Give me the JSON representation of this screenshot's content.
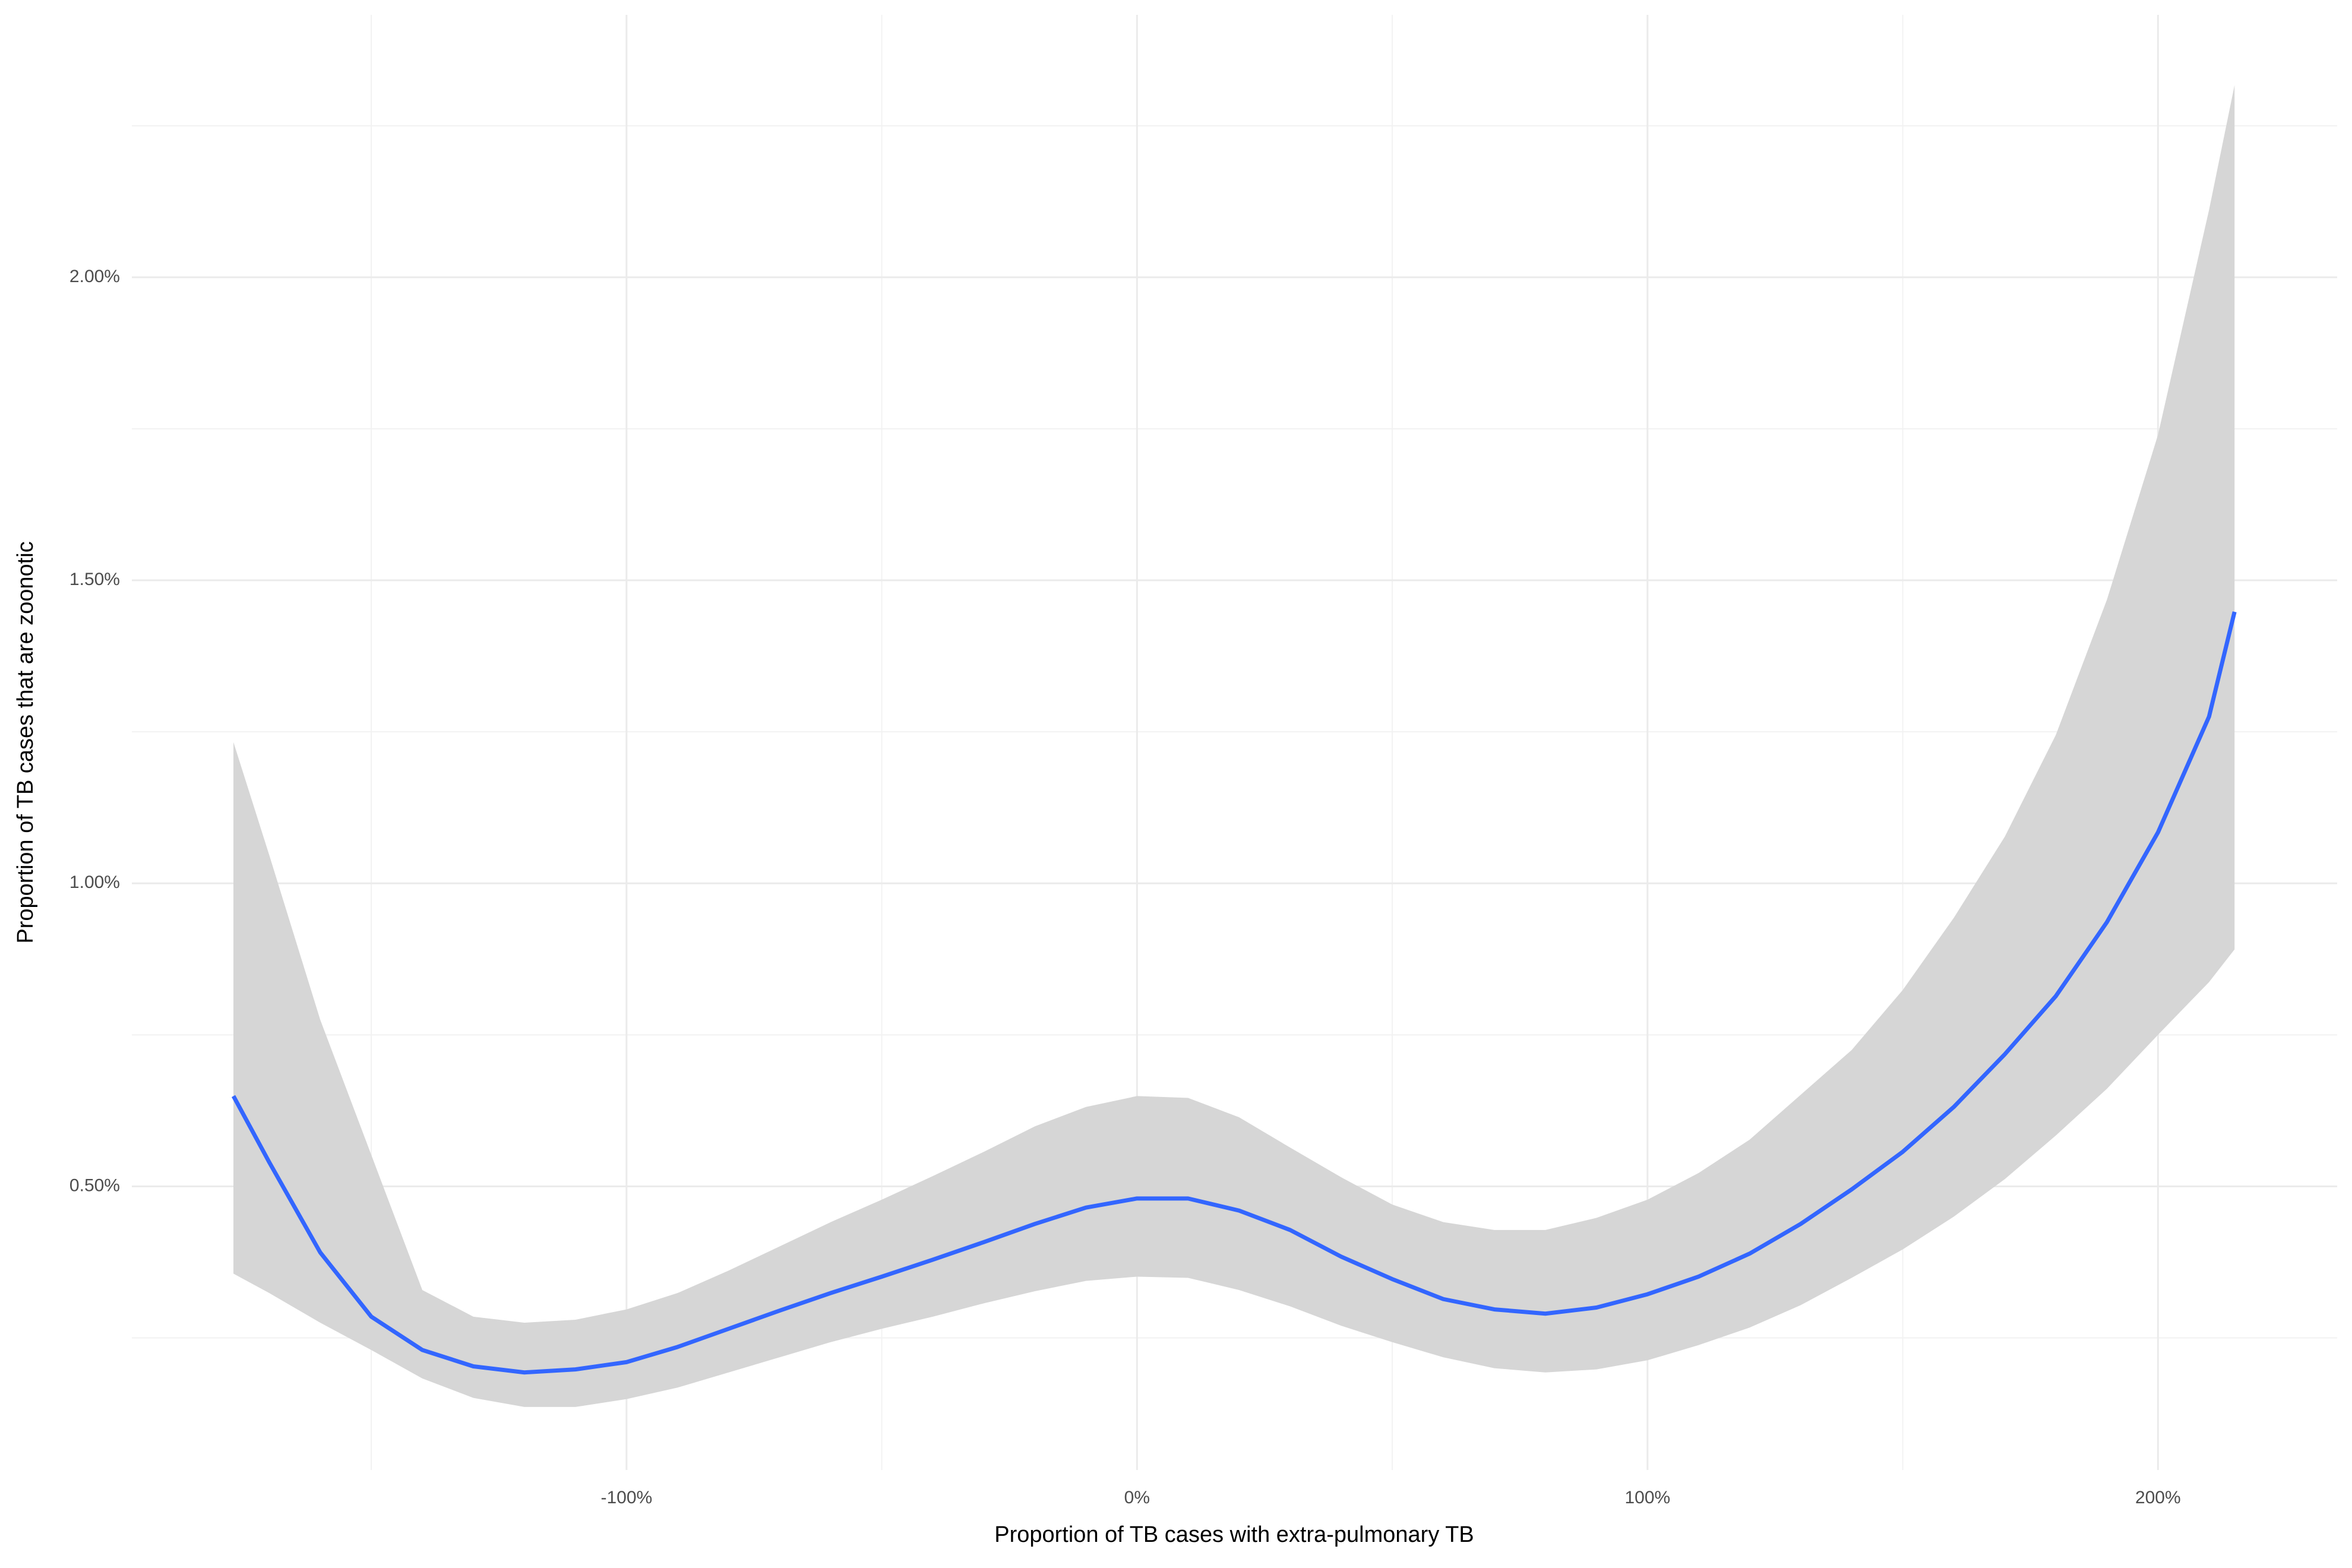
{
  "chart_data": {
    "type": "smooth",
    "x_label": "Proportion of TB cases with extra-pulmonary TB",
    "y_label": "Proportion of TB cases that are zoonotic",
    "xlim": [
      -196.9,
      235.1
    ],
    "ylim": [
      0.032,
      2.433
    ],
    "xticks": [
      {
        "value": -100,
        "label": "-100%"
      },
      {
        "value": 0,
        "label": "0%"
      },
      {
        "value": 100,
        "label": "100%"
      },
      {
        "value": 200,
        "label": "200%"
      }
    ],
    "yticks": [
      {
        "value": 0.5,
        "label": "0.50%"
      },
      {
        "value": 1,
        "label": "1.00%"
      },
      {
        "value": 1.5,
        "label": "1.50%"
      },
      {
        "value": 2,
        "label": "2.00%"
      }
    ],
    "xminor": [
      -150,
      -50,
      50,
      150
    ],
    "yminor": [
      0.25,
      0.75,
      1.25,
      1.75,
      2.25
    ],
    "grid": true,
    "color": "#3366ff",
    "ribbon_color": "#d6d6d6",
    "x": [
      -177,
      -170,
      -160,
      -150,
      -140,
      -130,
      -120,
      -110,
      -100,
      -90,
      -80,
      -70,
      -60,
      -50,
      -40,
      -30,
      -20,
      -10,
      0,
      10,
      20,
      30,
      40,
      50,
      60,
      70,
      80,
      90,
      100,
      110,
      120,
      130,
      140,
      150,
      160,
      170,
      180,
      190,
      200,
      210,
      215
    ],
    "values": [
      0.649,
      0.54,
      0.391,
      0.285,
      0.23,
      0.203,
      0.193,
      0.198,
      0.21,
      0.235,
      0.265,
      0.295,
      0.324,
      0.351,
      0.379,
      0.408,
      0.438,
      0.465,
      0.48,
      0.48,
      0.46,
      0.428,
      0.384,
      0.347,
      0.314,
      0.297,
      0.29,
      0.3,
      0.322,
      0.351,
      0.389,
      0.438,
      0.495,
      0.557,
      0.631,
      0.718,
      0.814,
      0.936,
      1.084,
      1.275,
      1.448
    ],
    "upper": [
      1.233,
      1.047,
      0.775,
      0.552,
      0.329,
      0.285,
      0.275,
      0.28,
      0.297,
      0.324,
      0.361,
      0.401,
      0.441,
      0.478,
      0.517,
      0.557,
      0.599,
      0.631,
      0.649,
      0.646,
      0.614,
      0.564,
      0.515,
      0.47,
      0.441,
      0.428,
      0.428,
      0.448,
      0.478,
      0.522,
      0.577,
      0.651,
      0.725,
      0.824,
      0.943,
      1.077,
      1.245,
      1.468,
      1.74,
      2.111,
      2.317
    ],
    "lower": [
      0.356,
      0.324,
      0.275,
      0.23,
      0.183,
      0.151,
      0.136,
      0.136,
      0.149,
      0.168,
      0.193,
      0.218,
      0.243,
      0.265,
      0.285,
      0.307,
      0.327,
      0.344,
      0.351,
      0.349,
      0.329,
      0.302,
      0.27,
      0.243,
      0.218,
      0.2,
      0.193,
      0.198,
      0.213,
      0.238,
      0.267,
      0.304,
      0.349,
      0.396,
      0.45,
      0.512,
      0.584,
      0.661,
      0.75,
      0.837,
      0.891
    ]
  }
}
